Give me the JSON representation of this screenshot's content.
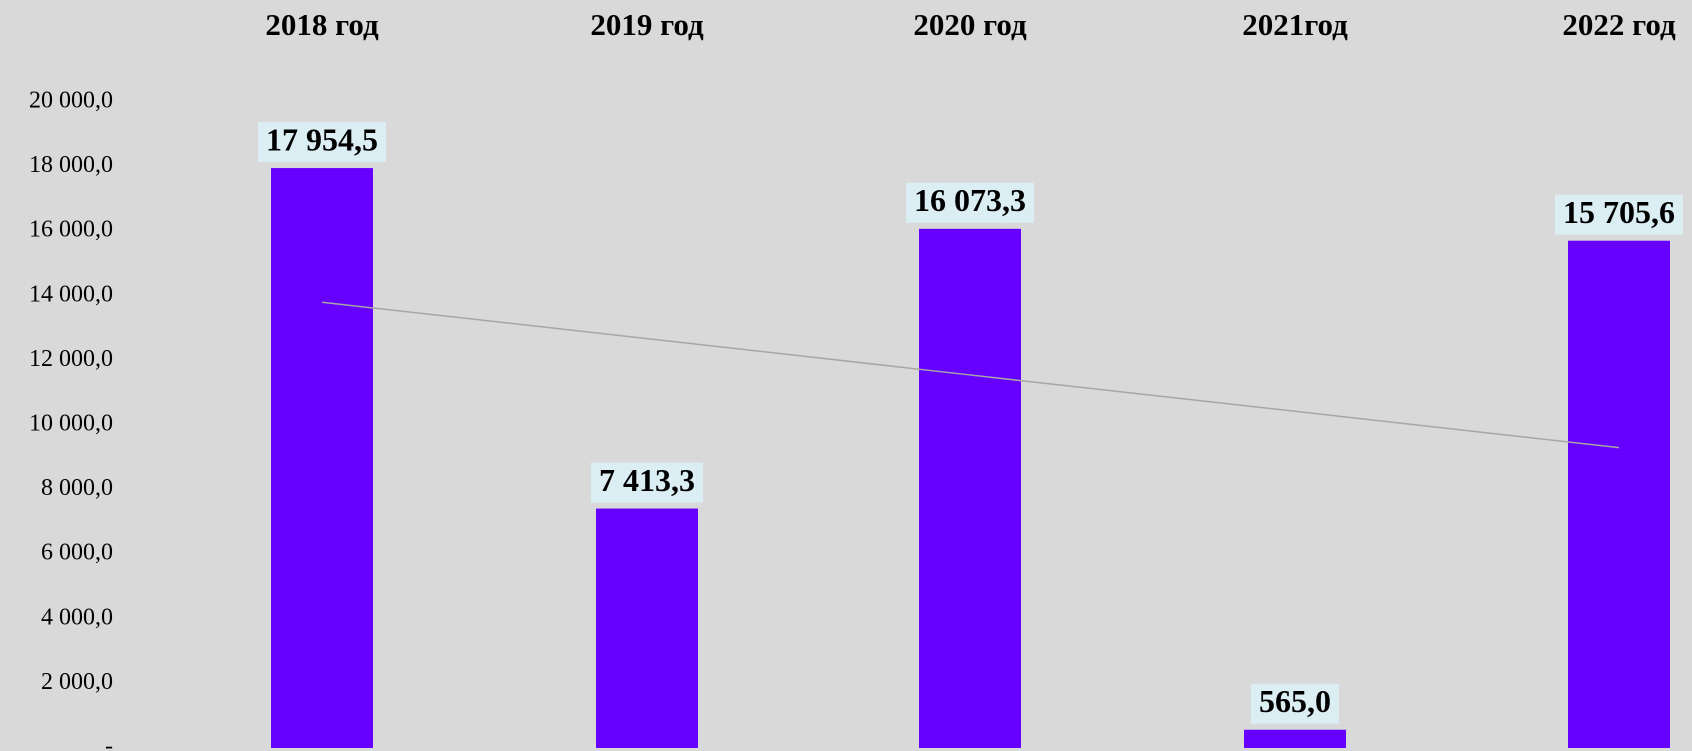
{
  "chart_data": {
    "type": "bar",
    "categories": [
      "2018 год",
      "2019 год",
      "2020 год",
      "2021год",
      "2022 год"
    ],
    "values": [
      17954.5,
      7413.3,
      16073.3,
      565.0,
      15705.6
    ],
    "value_labels": [
      "17 954,5",
      "7 413,3",
      "16 073,3",
      "565,0",
      "15 705,6"
    ],
    "color": "#6600ff",
    "trendline": {
      "color": "#a6a6a6",
      "values": [
        13800,
        12675,
        11550,
        10425,
        9300
      ]
    },
    "ylim": [
      0,
      20000
    ],
    "yticks": [
      {
        "value": 0,
        "label": "-"
      },
      {
        "value": 2000,
        "label": "2 000,0"
      },
      {
        "value": 4000,
        "label": "4 000,0"
      },
      {
        "value": 6000,
        "label": "6 000,0"
      },
      {
        "value": 8000,
        "label": "8 000,0"
      },
      {
        "value": 10000,
        "label": "10 000,0"
      },
      {
        "value": 12000,
        "label": "12 000,0"
      },
      {
        "value": 14000,
        "label": "14 000,0"
      },
      {
        "value": 16000,
        "label": "16 000,0"
      },
      {
        "value": 18000,
        "label": "18 000,0"
      },
      {
        "value": 20000,
        "label": "20 000,0"
      }
    ],
    "grid": false
  }
}
